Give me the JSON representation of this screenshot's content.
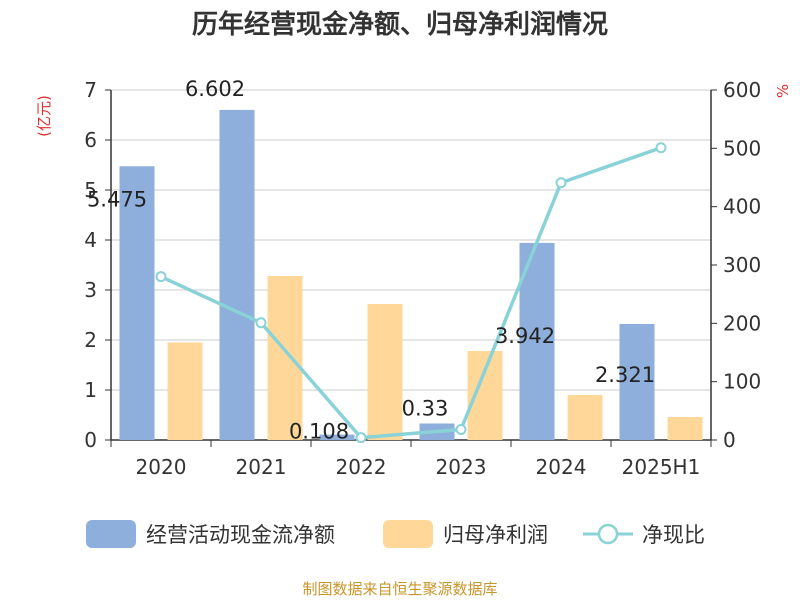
{
  "title": "历年经营现金净额、归母净利润情况",
  "source": "制图数据来自恒生聚源数据库",
  "chart_data": {
    "type": "bar",
    "categories": [
      "2020",
      "2021",
      "2022",
      "2023",
      "2024",
      "2025H1"
    ],
    "y_left": {
      "unit": "(亿元)",
      "min": 0,
      "max": 7,
      "ticks": [
        "0",
        "1",
        "2",
        "3",
        "4",
        "5",
        "6",
        "7"
      ]
    },
    "y_right": {
      "unit": "%",
      "min": 0,
      "max": 600,
      "ticks": [
        "0",
        "100",
        "200",
        "300",
        "400",
        "500",
        "600"
      ]
    },
    "grid": true,
    "legend_position": "bottom",
    "series": [
      {
        "name": "经营活动现金流净额",
        "kind": "bar",
        "axis": "left",
        "color": "#8eaedb",
        "values": [
          5.475,
          6.602,
          0.108,
          0.33,
          3.942,
          2.321
        ],
        "labels": [
          "5.475",
          "6.602",
          "0.108",
          "0.33",
          "3.942",
          "2.321"
        ]
      },
      {
        "name": "归母净利润",
        "kind": "bar",
        "axis": "left",
        "color": "#ffd899",
        "values": [
          1.95,
          3.28,
          2.72,
          1.78,
          0.9,
          0.46
        ]
      },
      {
        "name": "净现比",
        "kind": "line",
        "axis": "right",
        "color": "#88d2d8",
        "values": [
          280,
          201,
          4,
          18,
          441,
          501
        ]
      }
    ]
  }
}
